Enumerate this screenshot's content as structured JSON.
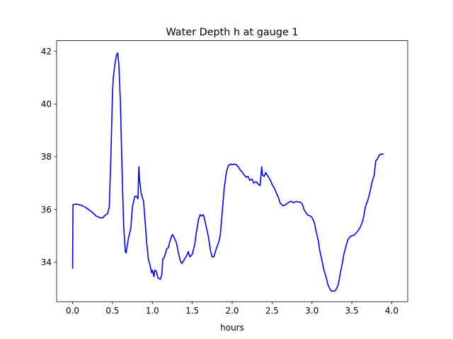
{
  "chart_data": {
    "type": "line",
    "title": "Water Depth h at gauge 1",
    "xlabel": "hours",
    "ylabel": "",
    "xlim": [
      -0.2,
      4.2
    ],
    "ylim": [
      32.5,
      42.4
    ],
    "xticks": [
      0.0,
      0.5,
      1.0,
      1.5,
      2.0,
      2.5,
      3.0,
      3.5,
      4.0
    ],
    "xtick_labels": [
      "0.0",
      "0.5",
      "1.0",
      "1.5",
      "2.0",
      "2.5",
      "3.0",
      "3.5",
      "4.0"
    ],
    "yticks": [
      34,
      36,
      38,
      40,
      42
    ],
    "ytick_labels": [
      "34",
      "36",
      "38",
      "40",
      "42"
    ],
    "grid": false,
    "series": [
      {
        "color": "#0000ff",
        "points": [
          [
            0.0,
            33.75
          ],
          [
            0.005,
            36.18
          ],
          [
            0.05,
            36.2
          ],
          [
            0.1,
            36.17
          ],
          [
            0.15,
            36.1
          ],
          [
            0.2,
            36.0
          ],
          [
            0.25,
            35.88
          ],
          [
            0.3,
            35.74
          ],
          [
            0.35,
            35.68
          ],
          [
            0.38,
            35.68
          ],
          [
            0.4,
            35.76
          ],
          [
            0.44,
            35.85
          ],
          [
            0.46,
            36.1
          ],
          [
            0.48,
            38.0
          ],
          [
            0.5,
            40.4
          ],
          [
            0.51,
            41.0
          ],
          [
            0.53,
            41.5
          ],
          [
            0.55,
            41.85
          ],
          [
            0.565,
            41.93
          ],
          [
            0.58,
            41.5
          ],
          [
            0.6,
            40.0
          ],
          [
            0.62,
            37.5
          ],
          [
            0.64,
            35.4
          ],
          [
            0.66,
            34.4
          ],
          [
            0.67,
            34.35
          ],
          [
            0.7,
            34.9
          ],
          [
            0.73,
            35.3
          ],
          [
            0.75,
            36.1
          ],
          [
            0.78,
            36.5
          ],
          [
            0.8,
            36.5
          ],
          [
            0.82,
            36.4
          ],
          [
            0.83,
            37.62
          ],
          [
            0.84,
            37.1
          ],
          [
            0.86,
            36.6
          ],
          [
            0.89,
            36.3
          ],
          [
            0.91,
            35.5
          ],
          [
            0.93,
            34.7
          ],
          [
            0.95,
            34.1
          ],
          [
            0.97,
            33.9
          ],
          [
            0.99,
            33.6
          ],
          [
            1.0,
            33.7
          ],
          [
            1.02,
            33.45
          ],
          [
            1.03,
            33.7
          ],
          [
            1.05,
            33.65
          ],
          [
            1.07,
            33.4
          ],
          [
            1.1,
            33.35
          ],
          [
            1.12,
            33.55
          ],
          [
            1.13,
            34.1
          ],
          [
            1.15,
            34.2
          ],
          [
            1.18,
            34.5
          ],
          [
            1.2,
            34.55
          ],
          [
            1.22,
            34.8
          ],
          [
            1.25,
            35.05
          ],
          [
            1.27,
            34.95
          ],
          [
            1.3,
            34.75
          ],
          [
            1.33,
            34.3
          ],
          [
            1.35,
            34.05
          ],
          [
            1.37,
            33.95
          ],
          [
            1.4,
            34.1
          ],
          [
            1.43,
            34.25
          ],
          [
            1.45,
            34.4
          ],
          [
            1.47,
            34.2
          ],
          [
            1.5,
            34.3
          ],
          [
            1.53,
            34.65
          ],
          [
            1.55,
            35.1
          ],
          [
            1.58,
            35.65
          ],
          [
            1.6,
            35.8
          ],
          [
            1.62,
            35.75
          ],
          [
            1.64,
            35.8
          ],
          [
            1.66,
            35.55
          ],
          [
            1.7,
            35.0
          ],
          [
            1.73,
            34.4
          ],
          [
            1.75,
            34.2
          ],
          [
            1.77,
            34.2
          ],
          [
            1.8,
            34.5
          ],
          [
            1.83,
            34.75
          ],
          [
            1.85,
            35.0
          ],
          [
            1.87,
            35.7
          ],
          [
            1.9,
            36.8
          ],
          [
            1.93,
            37.45
          ],
          [
            1.95,
            37.65
          ],
          [
            1.98,
            37.72
          ],
          [
            2.0,
            37.7
          ],
          [
            2.03,
            37.72
          ],
          [
            2.05,
            37.7
          ],
          [
            2.08,
            37.6
          ],
          [
            2.1,
            37.5
          ],
          [
            2.13,
            37.4
          ],
          [
            2.15,
            37.3
          ],
          [
            2.18,
            37.22
          ],
          [
            2.2,
            37.25
          ],
          [
            2.22,
            37.1
          ],
          [
            2.25,
            37.15
          ],
          [
            2.27,
            37.0
          ],
          [
            2.3,
            37.05
          ],
          [
            2.33,
            36.95
          ],
          [
            2.35,
            36.9
          ],
          [
            2.37,
            37.62
          ],
          [
            2.38,
            37.3
          ],
          [
            2.4,
            37.25
          ],
          [
            2.42,
            37.4
          ],
          [
            2.45,
            37.25
          ],
          [
            2.48,
            37.1
          ],
          [
            2.5,
            36.95
          ],
          [
            2.53,
            36.8
          ],
          [
            2.55,
            36.65
          ],
          [
            2.58,
            36.45
          ],
          [
            2.6,
            36.25
          ],
          [
            2.63,
            36.15
          ],
          [
            2.65,
            36.15
          ],
          [
            2.68,
            36.2
          ],
          [
            2.7,
            36.25
          ],
          [
            2.73,
            36.3
          ],
          [
            2.75,
            36.3
          ],
          [
            2.77,
            36.25
          ],
          [
            2.8,
            36.3
          ],
          [
            2.83,
            36.28
          ],
          [
            2.85,
            36.28
          ],
          [
            2.88,
            36.2
          ],
          [
            2.9,
            36.0
          ],
          [
            2.93,
            35.85
          ],
          [
            2.95,
            35.78
          ],
          [
            2.98,
            35.75
          ],
          [
            3.0,
            35.7
          ],
          [
            3.03,
            35.5
          ],
          [
            3.05,
            35.2
          ],
          [
            3.08,
            34.8
          ],
          [
            3.1,
            34.4
          ],
          [
            3.13,
            34.0
          ],
          [
            3.15,
            33.7
          ],
          [
            3.18,
            33.4
          ],
          [
            3.2,
            33.15
          ],
          [
            3.23,
            32.95
          ],
          [
            3.25,
            32.9
          ],
          [
            3.28,
            32.9
          ],
          [
            3.3,
            32.95
          ],
          [
            3.33,
            33.15
          ],
          [
            3.35,
            33.5
          ],
          [
            3.38,
            33.95
          ],
          [
            3.4,
            34.3
          ],
          [
            3.43,
            34.65
          ],
          [
            3.45,
            34.85
          ],
          [
            3.48,
            34.97
          ],
          [
            3.5,
            35.0
          ],
          [
            3.53,
            35.03
          ],
          [
            3.55,
            35.1
          ],
          [
            3.58,
            35.2
          ],
          [
            3.6,
            35.3
          ],
          [
            3.63,
            35.5
          ],
          [
            3.65,
            35.75
          ],
          [
            3.67,
            36.1
          ],
          [
            3.7,
            36.35
          ],
          [
            3.73,
            36.7
          ],
          [
            3.75,
            37.0
          ],
          [
            3.78,
            37.3
          ],
          [
            3.8,
            37.85
          ],
          [
            3.82,
            37.9
          ],
          [
            3.84,
            38.05
          ],
          [
            3.87,
            38.1
          ],
          [
            3.9,
            38.1
          ]
        ]
      }
    ]
  }
}
